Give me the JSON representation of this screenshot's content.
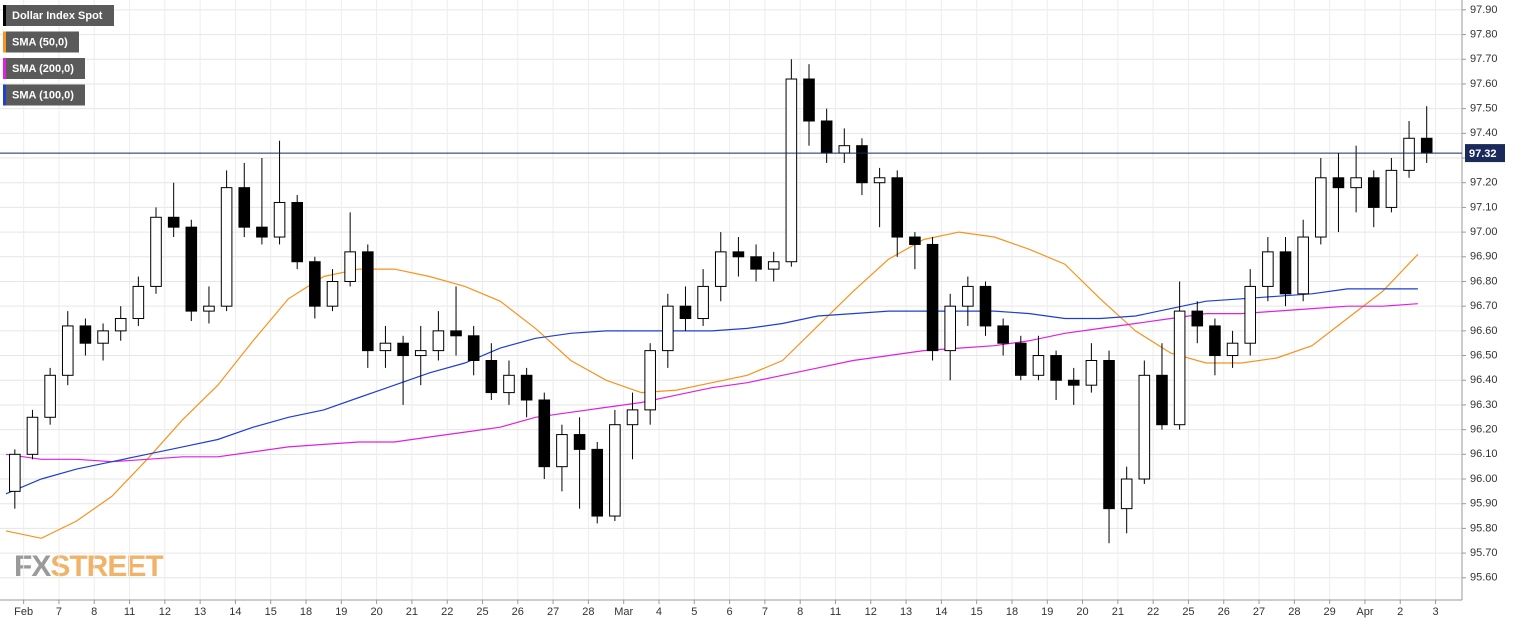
{
  "chart_data": {
    "type": "candlestick",
    "name": "Dollar Index Spot",
    "color": "#000000",
    "x": [
      -0.25,
      0.25,
      0.75,
      1.25,
      1.75,
      2.25,
      2.75,
      3.25,
      3.75,
      4.25,
      4.75,
      5.25,
      5.75,
      6.25,
      6.75,
      7.25,
      7.75,
      8.25,
      8.75,
      9.25,
      9.75,
      10.25,
      10.75,
      11.25,
      11.75,
      12.25,
      12.75,
      13.25,
      13.75,
      14.25,
      14.75,
      15.25,
      15.75,
      16.25,
      16.75,
      17.25,
      17.75,
      18.25,
      18.75,
      19.25,
      19.75,
      20.25,
      20.75,
      21.25,
      21.75,
      22.25,
      22.75,
      23.25,
      23.75,
      24.25,
      24.75,
      25.25,
      25.75,
      26.25,
      26.75,
      27.25,
      27.75,
      28.25,
      28.75,
      29.25,
      29.75,
      30.25,
      30.75,
      31.25,
      31.75,
      32.25,
      32.75,
      33.25,
      33.75,
      34.25,
      34.75,
      35.25,
      35.75,
      36.25,
      36.75,
      37.25,
      37.75,
      38.25,
      38.75,
      39.25,
      39.75
    ],
    "open": [
      95.95,
      96.1,
      96.25,
      96.42,
      96.62,
      96.55,
      96.6,
      96.65,
      96.78,
      97.06,
      97.02,
      96.68,
      96.7,
      97.18,
      97.02,
      96.98,
      97.12,
      96.88,
      96.7,
      96.8,
      96.92,
      96.52,
      96.55,
      96.5,
      96.52,
      96.6,
      96.58,
      96.48,
      96.35,
      96.42,
      96.32,
      96.05,
      96.18,
      96.12,
      95.85,
      96.22,
      96.28,
      96.52,
      96.7,
      96.65,
      96.78,
      96.92,
      96.9,
      96.85,
      96.88,
      97.62,
      97.45,
      97.32,
      97.35,
      97.2,
      97.22,
      96.98,
      96.95,
      96.52,
      96.7,
      96.78,
      96.62,
      96.55,
      96.42,
      96.5,
      96.4,
      96.38,
      96.48,
      95.88,
      96.0,
      96.42,
      96.22,
      96.68,
      96.62,
      96.5,
      96.55,
      96.78,
      96.92,
      96.75,
      96.98,
      97.22,
      97.18,
      97.22,
      97.1,
      97.25,
      97.38
    ],
    "high": [
      96.12,
      96.28,
      96.45,
      96.68,
      96.65,
      96.63,
      96.7,
      96.82,
      97.1,
      97.2,
      97.05,
      96.78,
      97.25,
      97.28,
      97.3,
      97.37,
      97.15,
      96.9,
      96.85,
      97.08,
      96.95,
      96.62,
      96.58,
      96.62,
      96.68,
      96.78,
      96.62,
      96.55,
      96.48,
      96.45,
      96.35,
      96.22,
      96.25,
      96.15,
      96.28,
      96.35,
      96.55,
      96.75,
      96.78,
      96.85,
      97.0,
      96.98,
      96.95,
      96.92,
      97.7,
      97.68,
      97.5,
      97.42,
      97.38,
      97.26,
      97.25,
      97.0,
      96.98,
      96.75,
      96.82,
      96.8,
      96.65,
      96.58,
      96.58,
      96.52,
      96.45,
      96.55,
      96.52,
      96.05,
      96.48,
      96.55,
      96.8,
      96.72,
      96.65,
      96.6,
      96.85,
      96.98,
      96.98,
      97.05,
      97.3,
      97.32,
      97.35,
      97.25,
      97.3,
      97.45,
      97.51
    ],
    "low": [
      95.88,
      96.08,
      96.22,
      96.38,
      96.5,
      96.48,
      96.56,
      96.62,
      96.75,
      96.98,
      96.64,
      96.63,
      96.68,
      96.98,
      96.95,
      96.95,
      96.85,
      96.65,
      96.68,
      96.78,
      96.45,
      96.45,
      96.3,
      96.38,
      96.48,
      96.5,
      96.42,
      96.32,
      96.3,
      96.25,
      96.0,
      95.95,
      95.88,
      95.82,
      95.83,
      96.08,
      96.22,
      96.45,
      96.6,
      96.62,
      96.72,
      96.82,
      96.8,
      96.8,
      96.86,
      97.35,
      97.28,
      97.28,
      97.15,
      97.02,
      96.9,
      96.85,
      96.48,
      96.4,
      96.62,
      96.58,
      96.5,
      96.4,
      96.4,
      96.32,
      96.3,
      96.35,
      95.74,
      95.78,
      95.98,
      96.2,
      96.2,
      96.55,
      96.42,
      96.45,
      96.5,
      96.72,
      96.7,
      96.72,
      96.95,
      97.0,
      97.08,
      97.02,
      97.08,
      97.22,
      97.28
    ],
    "close": [
      96.1,
      96.25,
      96.42,
      96.62,
      96.55,
      96.6,
      96.65,
      96.78,
      97.06,
      97.02,
      96.68,
      96.7,
      97.18,
      97.02,
      96.98,
      97.12,
      96.88,
      96.7,
      96.8,
      96.92,
      96.52,
      96.55,
      96.5,
      96.52,
      96.6,
      96.58,
      96.48,
      96.35,
      96.42,
      96.32,
      96.05,
      96.18,
      96.12,
      95.85,
      96.22,
      96.28,
      96.52,
      96.7,
      96.65,
      96.78,
      96.92,
      96.9,
      96.85,
      96.88,
      97.62,
      97.45,
      97.32,
      97.35,
      97.2,
      97.22,
      96.98,
      96.95,
      96.52,
      96.7,
      96.78,
      96.62,
      96.55,
      96.42,
      96.5,
      96.4,
      96.38,
      96.48,
      95.88,
      96.0,
      96.42,
      96.22,
      96.68,
      96.62,
      96.5,
      96.55,
      96.78,
      96.92,
      96.75,
      96.98,
      97.22,
      97.18,
      97.22,
      97.1,
      97.25,
      97.38,
      97.32
    ],
    "series": [
      {
        "name": "SMA (50,0)",
        "color": "#f7931e",
        "x": [
          -0.5,
          0.5,
          1.5,
          2.5,
          3.5,
          4.5,
          5.5,
          6.5,
          7.5,
          8.5,
          9.5,
          10.5,
          11.5,
          12.5,
          13.5,
          14.5,
          15.5,
          16.5,
          17.5,
          18.5,
          19.5,
          20.5,
          21.5,
          22.5,
          23.5,
          24.5,
          25.5,
          26.5,
          27.5,
          28.5,
          29.5,
          30.5,
          31.5,
          32.5,
          33.5,
          34.5,
          35.5,
          36.5,
          37.5,
          38.5,
          39.5
        ],
        "values": [
          95.79,
          95.76,
          95.83,
          95.93,
          96.08,
          96.24,
          96.38,
          96.56,
          96.73,
          96.82,
          96.85,
          96.85,
          96.82,
          96.78,
          96.72,
          96.61,
          96.48,
          96.4,
          96.35,
          96.36,
          96.39,
          96.42,
          96.48,
          96.62,
          96.76,
          96.89,
          96.97,
          97.0,
          96.98,
          96.93,
          96.87,
          96.73,
          96.6,
          96.51,
          96.47,
          96.47,
          96.49,
          96.54,
          96.65,
          96.76,
          96.91
        ]
      },
      {
        "name": "SMA (200,0)",
        "color": "#e020e0",
        "x": [
          -0.5,
          0.5,
          1.5,
          2.5,
          3.5,
          4.5,
          5.5,
          6.5,
          7.5,
          8.5,
          9.5,
          10.5,
          11.5,
          12.5,
          13.5,
          14.5,
          15.5,
          16.5,
          17.5,
          18.5,
          19.5,
          20.5,
          21.5,
          22.5,
          23.5,
          24.5,
          25.5,
          26.5,
          27.5,
          28.5,
          29.5,
          30.5,
          31.5,
          32.5,
          33.5,
          34.5,
          35.5,
          36.5,
          37.5,
          38.5,
          39.5
        ],
        "values": [
          96.1,
          96.08,
          96.08,
          96.07,
          96.08,
          96.09,
          96.09,
          96.11,
          96.13,
          96.14,
          96.15,
          96.15,
          96.17,
          96.19,
          96.21,
          96.25,
          96.27,
          96.29,
          96.31,
          96.34,
          96.37,
          96.39,
          96.42,
          96.45,
          96.48,
          96.5,
          96.52,
          96.53,
          96.54,
          96.56,
          96.59,
          96.61,
          96.63,
          96.65,
          96.67,
          96.67,
          96.68,
          96.69,
          96.7,
          96.7,
          96.71
        ]
      },
      {
        "name": "SMA (100,0)",
        "color": "#1f3fd0",
        "x": [
          -0.5,
          0.5,
          1.5,
          2.5,
          3.5,
          4.5,
          5.5,
          6.5,
          7.5,
          8.5,
          9.5,
          10.5,
          11.5,
          12.5,
          13.5,
          14.5,
          15.5,
          16.5,
          17.5,
          18.5,
          19.5,
          20.5,
          21.5,
          22.5,
          23.5,
          24.5,
          25.5,
          26.5,
          27.5,
          28.5,
          29.5,
          30.5,
          31.5,
          32.5,
          33.5,
          34.5,
          35.5,
          36.5,
          37.5,
          38.5,
          39.5
        ],
        "values": [
          95.94,
          96.0,
          96.04,
          96.07,
          96.1,
          96.13,
          96.16,
          96.21,
          96.25,
          96.28,
          96.33,
          96.38,
          96.43,
          96.47,
          96.53,
          96.57,
          96.59,
          96.6,
          96.6,
          96.6,
          96.6,
          96.61,
          96.63,
          96.66,
          96.67,
          96.68,
          96.68,
          96.68,
          96.68,
          96.67,
          96.65,
          96.65,
          96.66,
          96.69,
          96.72,
          96.73,
          96.74,
          96.75,
          96.77,
          96.77,
          96.77
        ]
      }
    ],
    "last_price": 97.32,
    "last_price_color": "#1a2a5a",
    "xlim": [
      -0.67,
      40.75
    ],
    "ylim": [
      95.51,
      97.94
    ],
    "xticks": [
      {
        "value": 0,
        "label": "Feb"
      },
      {
        "value": 1,
        "label": "7"
      },
      {
        "value": 2,
        "label": "8"
      },
      {
        "value": 3,
        "label": "11"
      },
      {
        "value": 4,
        "label": "12"
      },
      {
        "value": 5,
        "label": "13"
      },
      {
        "value": 6,
        "label": "14"
      },
      {
        "value": 7,
        "label": "15"
      },
      {
        "value": 8,
        "label": "18"
      },
      {
        "value": 9,
        "label": "19"
      },
      {
        "value": 10,
        "label": "20"
      },
      {
        "value": 11,
        "label": "21"
      },
      {
        "value": 12,
        "label": "22"
      },
      {
        "value": 13,
        "label": "25"
      },
      {
        "value": 14,
        "label": "26"
      },
      {
        "value": 15,
        "label": "27"
      },
      {
        "value": 16,
        "label": "28"
      },
      {
        "value": 17,
        "label": "Mar"
      },
      {
        "value": 18,
        "label": "4"
      },
      {
        "value": 19,
        "label": "5"
      },
      {
        "value": 20,
        "label": "6"
      },
      {
        "value": 21,
        "label": "7"
      },
      {
        "value": 22,
        "label": "8"
      },
      {
        "value": 23,
        "label": "11"
      },
      {
        "value": 24,
        "label": "12"
      },
      {
        "value": 25,
        "label": "13"
      },
      {
        "value": 26,
        "label": "14"
      },
      {
        "value": 27,
        "label": "15"
      },
      {
        "value": 28,
        "label": "18"
      },
      {
        "value": 29,
        "label": "19"
      },
      {
        "value": 30,
        "label": "20"
      },
      {
        "value": 31,
        "label": "21"
      },
      {
        "value": 32,
        "label": "22"
      },
      {
        "value": 33,
        "label": "25"
      },
      {
        "value": 34,
        "label": "26"
      },
      {
        "value": 35,
        "label": "27"
      },
      {
        "value": 36,
        "label": "28"
      },
      {
        "value": 37,
        "label": "29"
      },
      {
        "value": 38,
        "label": "Apr"
      },
      {
        "value": 39,
        "label": "2"
      },
      {
        "value": 40,
        "label": "3"
      }
    ],
    "yticks": [
      {
        "value": 95.6,
        "label": "95.60"
      },
      {
        "value": 95.7,
        "label": "95.70"
      },
      {
        "value": 95.8,
        "label": "95.80"
      },
      {
        "value": 95.9,
        "label": "95.90"
      },
      {
        "value": 96.0,
        "label": "96.00"
      },
      {
        "value": 96.1,
        "label": "96.10"
      },
      {
        "value": 96.2,
        "label": "96.20"
      },
      {
        "value": 96.3,
        "label": "96.30"
      },
      {
        "value": 96.4,
        "label": "96.40"
      },
      {
        "value": 96.5,
        "label": "96.50"
      },
      {
        "value": 96.6,
        "label": "96.60"
      },
      {
        "value": 96.7,
        "label": "96.70"
      },
      {
        "value": 96.8,
        "label": "96.80"
      },
      {
        "value": 96.9,
        "label": "96.90"
      },
      {
        "value": 97.0,
        "label": "97.00"
      },
      {
        "value": 97.1,
        "label": "97.10"
      },
      {
        "value": 97.2,
        "label": "97.20"
      },
      {
        "value": 97.3,
        "label": "97.30"
      },
      {
        "value": 97.4,
        "label": "97.40"
      },
      {
        "value": 97.5,
        "label": "97.50"
      },
      {
        "value": 97.6,
        "label": "97.60"
      },
      {
        "value": 97.7,
        "label": "97.70"
      },
      {
        "value": 97.8,
        "label": "97.80"
      },
      {
        "value": 97.9,
        "label": "97.90"
      }
    ],
    "grid": true,
    "watermark": [
      "FX",
      "STREET"
    ]
  }
}
